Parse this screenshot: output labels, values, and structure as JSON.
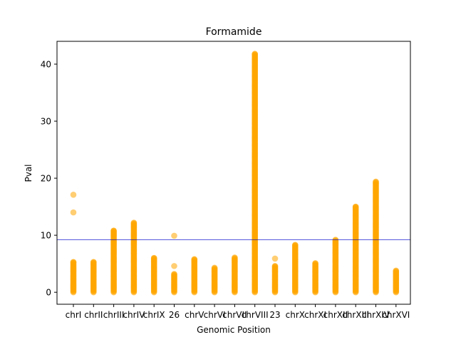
{
  "chart_data": {
    "type": "scatter",
    "title": "Formamide",
    "xlabel": "Genomic Position",
    "ylabel": "Pval",
    "categories": [
      "chrI",
      "chrII",
      "chrIII",
      "chrIV",
      "chrIX",
      "26",
      "chrV",
      "chrVI",
      "chrVII",
      "chrVIII",
      "23",
      "chrX",
      "chrXI",
      "chrXII",
      "chrXIII",
      "chrXIV",
      "chrXVI"
    ],
    "yticks": [
      0,
      10,
      20,
      30,
      40
    ],
    "ylim": [
      -2.1,
      44
    ],
    "threshold": 9.2,
    "grid": false,
    "colors": {
      "points": "#FFA500",
      "threshold": "#0000CD"
    },
    "series": [
      {
        "category": "chrI",
        "max": 5.3,
        "outliers": [
          14.0,
          17.1
        ]
      },
      {
        "category": "chrII",
        "max": 5.3,
        "outliers": []
      },
      {
        "category": "chrIII",
        "max": 10.8,
        "outliers": []
      },
      {
        "category": "chrIV",
        "max": 12.2,
        "outliers": []
      },
      {
        "category": "chrIX",
        "max": 6.0,
        "outliers": []
      },
      {
        "category": "26",
        "max": 3.2,
        "outliers": [
          4.6,
          9.9
        ]
      },
      {
        "category": "chrV",
        "max": 5.8,
        "outliers": []
      },
      {
        "category": "chrVI",
        "max": 4.3,
        "outliers": []
      },
      {
        "category": "chrVII",
        "max": 6.1,
        "outliers": []
      },
      {
        "category": "chrVIII",
        "max": 41.8,
        "outliers": []
      },
      {
        "category": "23",
        "max": 4.6,
        "outliers": [
          5.9
        ]
      },
      {
        "category": "chrX",
        "max": 8.3,
        "outliers": []
      },
      {
        "category": "chrXI",
        "max": 5.1,
        "outliers": []
      },
      {
        "category": "chrXII",
        "max": 9.2,
        "outliers": []
      },
      {
        "category": "chrXIII",
        "max": 15.0,
        "outliers": []
      },
      {
        "category": "chrXIV",
        "max": 19.4,
        "outliers": []
      },
      {
        "category": "chrXVI",
        "max": 3.8,
        "outliers": []
      }
    ]
  }
}
